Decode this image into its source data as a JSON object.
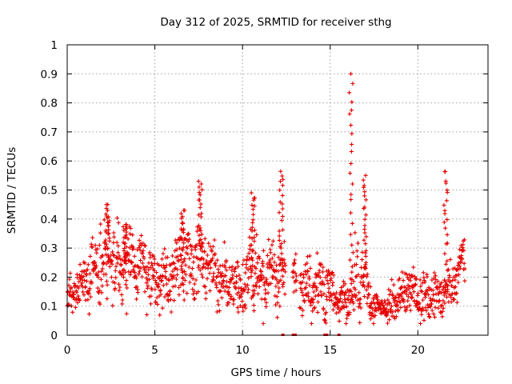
{
  "chart_data": {
    "type": "scatter",
    "title": "Day 312 of 2025, SRMTID for receiver sthg",
    "xlabel": "GPS time / hours",
    "ylabel": "SRMTID / TECUs",
    "xlim": [
      0,
      24
    ],
    "ylim": [
      0,
      1
    ],
    "xticks": [
      "0",
      "5",
      "10",
      "15",
      "20"
    ],
    "xtick_values": [
      0,
      5,
      10,
      15,
      20
    ],
    "yticks": [
      "0",
      "0.1",
      "0.2",
      "0.3",
      "0.4",
      "0.5",
      "0.6",
      "0.7",
      "0.8",
      "0.9",
      "1"
    ],
    "ytick_values": [
      0,
      0.1,
      0.2,
      0.3,
      0.4,
      0.5,
      0.6,
      0.7,
      0.8,
      0.9,
      1
    ],
    "grid": true,
    "marker": "+",
    "color": "#e60000",
    "envelope": {
      "description": "approximate median level and typical spread of the point cloud, in data units",
      "hours": [
        0,
        0.5,
        1,
        1.5,
        2,
        2.5,
        3,
        3.5,
        4,
        4.5,
        5,
        5.5,
        6,
        6.5,
        7,
        7.5,
        8,
        8.5,
        9,
        9.5,
        10,
        10.5,
        11,
        11.5,
        12,
        12.5,
        13,
        13.5,
        14,
        14.5,
        15,
        15.5,
        16,
        16.5,
        17,
        17.5,
        18,
        18.5,
        19,
        19.5,
        20,
        20.5,
        21,
        21.5,
        22,
        22.5
      ],
      "median": [
        0.12,
        0.15,
        0.2,
        0.22,
        0.25,
        0.27,
        0.22,
        0.24,
        0.25,
        0.22,
        0.2,
        0.18,
        0.22,
        0.26,
        0.24,
        0.27,
        0.24,
        0.22,
        0.18,
        0.17,
        0.17,
        0.22,
        0.2,
        0.19,
        0.2,
        null,
        0.18,
        0.17,
        0.16,
        0.17,
        0.15,
        0.12,
        0.11,
        0.2,
        0.17,
        0.1,
        0.09,
        0.1,
        0.13,
        0.15,
        0.14,
        0.12,
        0.13,
        0.15,
        0.16,
        0.26
      ],
      "spread": [
        0.03,
        0.04,
        0.05,
        0.06,
        0.07,
        0.07,
        0.07,
        0.06,
        0.06,
        0.06,
        0.05,
        0.05,
        0.06,
        0.06,
        0.07,
        0.07,
        0.06,
        0.06,
        0.05,
        0.05,
        0.05,
        0.07,
        0.06,
        0.06,
        0.06,
        null,
        0.05,
        0.05,
        0.05,
        0.05,
        0.05,
        0.03,
        0.04,
        0.08,
        0.07,
        0.03,
        0.02,
        0.03,
        0.04,
        0.05,
        0.04,
        0.04,
        0.04,
        0.04,
        0.04,
        0.04
      ],
      "gaps_hours": [
        [
          12.45,
          12.85
        ],
        [
          13.1,
          13.25
        ]
      ]
    },
    "spikes": [
      {
        "hour": 2.3,
        "peak": 0.45
      },
      {
        "hour": 3.3,
        "peak": 0.39
      },
      {
        "hour": 6.6,
        "peak": 0.43
      },
      {
        "hour": 7.6,
        "peak": 0.53
      },
      {
        "hour": 10.6,
        "peak": 0.49
      },
      {
        "hour": 12.2,
        "peak": 0.57
      },
      {
        "hour": 16.2,
        "peak": 0.9
      },
      {
        "hour": 17.0,
        "peak": 0.55
      },
      {
        "hour": 21.6,
        "peak": 0.57
      }
    ],
    "zero_values_hours": [
      12.3,
      12.9,
      13.0,
      14.7,
      14.8,
      15.5
    ]
  }
}
